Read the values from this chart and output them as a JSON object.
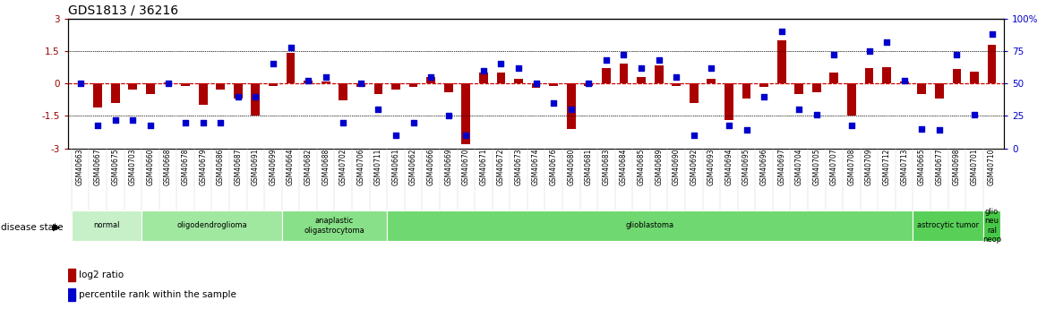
{
  "title": "GDS1813 / 36216",
  "samples": [
    "GSM40663",
    "GSM40667",
    "GSM40675",
    "GSM40703",
    "GSM40660",
    "GSM40668",
    "GSM40678",
    "GSM40679",
    "GSM40686",
    "GSM40687",
    "GSM40691",
    "GSM40699",
    "GSM40664",
    "GSM40682",
    "GSM40688",
    "GSM40702",
    "GSM40706",
    "GSM40711",
    "GSM40661",
    "GSM40662",
    "GSM40666",
    "GSM40669",
    "GSM40670",
    "GSM40671",
    "GSM40672",
    "GSM40673",
    "GSM40674",
    "GSM40676",
    "GSM40680",
    "GSM40681",
    "GSM40683",
    "GSM40684",
    "GSM40685",
    "GSM40689",
    "GSM40690",
    "GSM40692",
    "GSM40693",
    "GSM40694",
    "GSM40695",
    "GSM40696",
    "GSM40697",
    "GSM40704",
    "GSM40705",
    "GSM40707",
    "GSM40708",
    "GSM40709",
    "GSM40712",
    "GSM40713",
    "GSM40665",
    "GSM40677",
    "GSM40698",
    "GSM40701",
    "GSM40710"
  ],
  "log2_ratio": [
    0.0,
    -1.1,
    -0.9,
    -0.3,
    -0.5,
    0.05,
    -0.1,
    -1.0,
    -0.3,
    -0.7,
    -1.5,
    -0.1,
    1.4,
    0.15,
    0.1,
    -0.8,
    -0.15,
    -0.5,
    -0.3,
    -0.15,
    0.3,
    -0.4,
    -2.8,
    0.5,
    0.5,
    0.2,
    -0.2,
    -0.1,
    -2.1,
    -0.1,
    0.7,
    0.9,
    0.3,
    0.85,
    -0.1,
    -0.9,
    0.2,
    -1.7,
    -0.7,
    -0.15,
    2.0,
    -0.5,
    -0.4,
    0.5,
    -1.5,
    0.7,
    0.75,
    0.1,
    -0.5,
    -0.7,
    0.65,
    0.55,
    1.8
  ],
  "percentile": [
    50,
    18,
    22,
    22,
    18,
    50,
    20,
    20,
    20,
    40,
    40,
    65,
    78,
    52,
    55,
    20,
    50,
    30,
    10,
    20,
    55,
    25,
    10,
    60,
    65,
    62,
    50,
    35,
    30,
    50,
    68,
    72,
    62,
    68,
    55,
    10,
    62,
    18,
    14,
    40,
    90,
    30,
    26,
    72,
    18,
    75,
    82,
    52,
    15,
    14,
    72,
    26,
    88
  ],
  "disease_groups": [
    {
      "label": "normal",
      "start": 0,
      "end": 4,
      "color": "#c8f0c8"
    },
    {
      "label": "oligodendroglioma",
      "start": 4,
      "end": 12,
      "color": "#a0e8a0"
    },
    {
      "label": "anaplastic\noligastrocytoma",
      "start": 12,
      "end": 18,
      "color": "#88e088"
    },
    {
      "label": "glioblastoma",
      "start": 18,
      "end": 48,
      "color": "#70d870"
    },
    {
      "label": "astrocytic tumor",
      "start": 48,
      "end": 52,
      "color": "#58d058"
    },
    {
      "label": "glio\nneu\nral\nneop",
      "start": 52,
      "end": 53,
      "color": "#48c848"
    }
  ],
  "ylim_left": [
    -3,
    3
  ],
  "ylim_right": [
    0,
    100
  ],
  "yticks_left": [
    -3,
    -1.5,
    0,
    1.5,
    3
  ],
  "yticks_right": [
    0,
    25,
    50,
    75,
    100
  ],
  "bar_color": "#aa0000",
  "dot_color": "#0000cc",
  "zero_line_color": "#cc0000",
  "hline_color": "#000000",
  "background_color": "#ffffff",
  "right_axis_color": "#0000cc",
  "top_border_color": "#000000"
}
